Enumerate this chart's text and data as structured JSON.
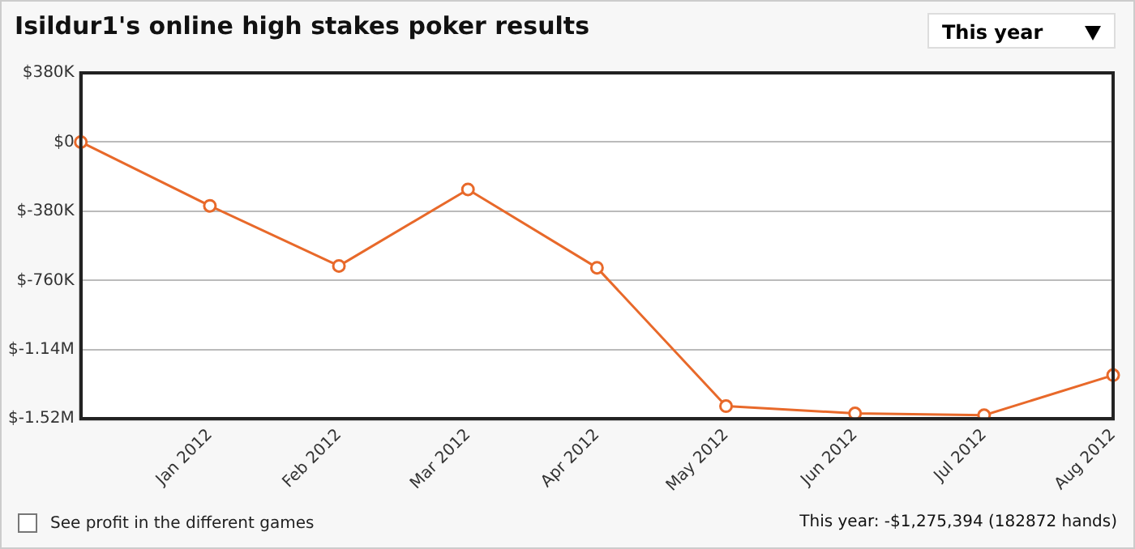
{
  "chart_data": {
    "type": "line",
    "title": "Isildur1's online high stakes poker results",
    "categories": [
      null,
      "Jan 2012",
      "Feb 2012",
      "Mar 2012",
      "Apr 2012",
      "May 2012",
      "Jun 2012",
      "Jul 2012",
      "Aug 2012"
    ],
    "series": [
      {
        "color": "#e8692a",
        "values": [
          0,
          -350000,
          -680000,
          -260000,
          -690000,
          -1450000,
          -1490000,
          -1500000,
          -1280000
        ]
      }
    ],
    "ylim": [
      -1520000,
      380000
    ],
    "yticks": [
      {
        "value": 380000,
        "label": "$380K"
      },
      {
        "value": 0,
        "label": "$0"
      },
      {
        "value": -380000,
        "label": "$-380K"
      },
      {
        "value": -760000,
        "label": "$-760K"
      },
      {
        "value": -1140000,
        "label": "$-1.14M"
      },
      {
        "value": -1520000,
        "label": "$-1.52M"
      }
    ],
    "grid": "y",
    "legend": false,
    "marker": "circle",
    "line_style": "solid",
    "annotations": [
      "This year",
      "See profit in the different games",
      "This year: -$1,275,394 (182872 hands)"
    ]
  }
}
